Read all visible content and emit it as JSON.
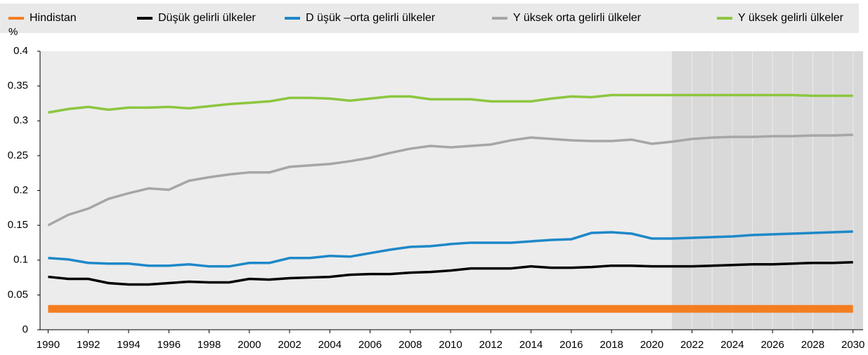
{
  "chart_data": {
    "type": "line",
    "y_label": "%",
    "x": [
      1990,
      1991,
      1992,
      1993,
      1994,
      1995,
      1996,
      1997,
      1998,
      1999,
      2000,
      2001,
      2002,
      2003,
      2004,
      2005,
      2006,
      2007,
      2008,
      2009,
      2010,
      2011,
      2012,
      2013,
      2014,
      2015,
      2016,
      2017,
      2018,
      2019,
      2020,
      2021,
      2022,
      2023,
      2024,
      2025,
      2026,
      2027,
      2028,
      2029,
      2030
    ],
    "xlim": [
      1989.6,
      2030.5
    ],
    "xticks": [
      1990,
      1992,
      1994,
      1996,
      1998,
      2000,
      2002,
      2004,
      2006,
      2008,
      2010,
      2012,
      2014,
      2016,
      2018,
      2020,
      2022,
      2024,
      2026,
      2028,
      2030
    ],
    "ylim": [
      0,
      0.4
    ],
    "yticks": [
      0,
      0.05,
      0.1,
      0.15,
      0.2,
      0.25,
      0.3,
      0.35,
      0.4
    ],
    "shaded_from": 2021,
    "series": [
      {
        "name": "Hindistan",
        "color": "#f47d20",
        "values": [
          0.03,
          0.03,
          0.03,
          0.03,
          0.03,
          0.03,
          0.03,
          0.03,
          0.03,
          0.03,
          0.03,
          0.03,
          0.03,
          0.03,
          0.03,
          0.03,
          0.03,
          0.03,
          0.03,
          0.03,
          0.03,
          0.03,
          0.03,
          0.03,
          0.03,
          0.03,
          0.03,
          0.03,
          0.03,
          0.03,
          0.03,
          0.03,
          0.03,
          0.03,
          0.03,
          0.03,
          0.03,
          0.03,
          0.03,
          0.03,
          0.03
        ]
      },
      {
        "name": "Düşük gelirli ülkeler",
        "color": "#000000",
        "values": [
          0.076,
          0.073,
          0.073,
          0.067,
          0.065,
          0.065,
          0.067,
          0.069,
          0.068,
          0.068,
          0.073,
          0.072,
          0.074,
          0.075,
          0.076,
          0.079,
          0.08,
          0.08,
          0.082,
          0.083,
          0.085,
          0.088,
          0.088,
          0.088,
          0.091,
          0.089,
          0.089,
          0.09,
          0.092,
          0.092,
          0.091,
          0.091,
          0.091,
          0.092,
          0.093,
          0.094,
          0.094,
          0.095,
          0.096,
          0.096,
          0.097
        ]
      },
      {
        "name": "D üşük –orta gelirli ülkeler",
        "color": "#1e88c8",
        "values": [
          0.103,
          0.101,
          0.096,
          0.095,
          0.095,
          0.092,
          0.092,
          0.094,
          0.091,
          0.091,
          0.096,
          0.096,
          0.103,
          0.103,
          0.106,
          0.105,
          0.11,
          0.115,
          0.119,
          0.12,
          0.123,
          0.125,
          0.125,
          0.125,
          0.127,
          0.129,
          0.13,
          0.139,
          0.14,
          0.138,
          0.131,
          0.131,
          0.132,
          0.133,
          0.134,
          0.136,
          0.137,
          0.138,
          0.139,
          0.14,
          0.141
        ]
      },
      {
        "name": "Y üksek orta gelirli ülkeler",
        "color": "#a6a6a6",
        "values": [
          0.15,
          0.165,
          0.174,
          0.188,
          0.196,
          0.203,
          0.201,
          0.214,
          0.219,
          0.223,
          0.226,
          0.226,
          0.234,
          0.236,
          0.238,
          0.242,
          0.247,
          0.254,
          0.26,
          0.264,
          0.262,
          0.264,
          0.266,
          0.272,
          0.276,
          0.274,
          0.272,
          0.271,
          0.271,
          0.273,
          0.267,
          0.27,
          0.274,
          0.276,
          0.277,
          0.277,
          0.278,
          0.278,
          0.279,
          0.279,
          0.28
        ]
      },
      {
        "name": "Y üksek gelirli ülkeler",
        "color": "#8cc63f",
        "values": [
          0.312,
          0.317,
          0.32,
          0.316,
          0.319,
          0.319,
          0.32,
          0.318,
          0.321,
          0.324,
          0.326,
          0.328,
          0.333,
          0.333,
          0.332,
          0.329,
          0.332,
          0.335,
          0.335,
          0.331,
          0.331,
          0.331,
          0.328,
          0.328,
          0.328,
          0.332,
          0.335,
          0.334,
          0.337,
          0.337,
          0.337,
          0.337,
          0.337,
          0.337,
          0.337,
          0.337,
          0.337,
          0.337,
          0.336,
          0.336,
          0.336
        ]
      }
    ]
  }
}
